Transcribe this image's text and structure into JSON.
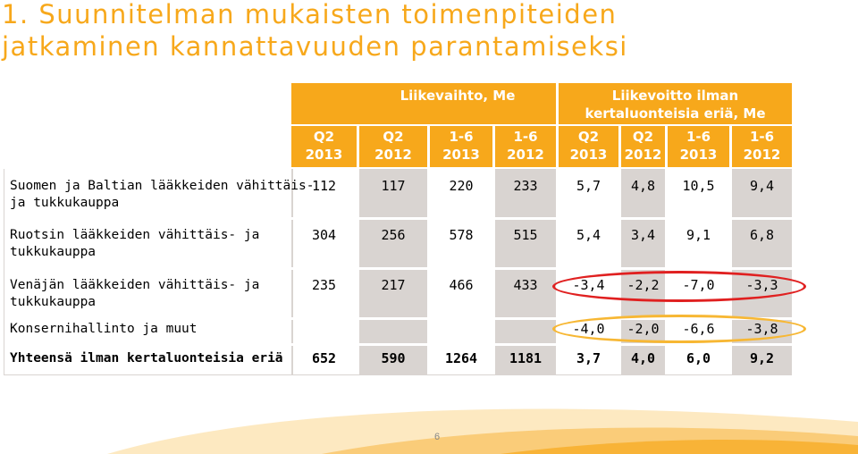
{
  "title": {
    "line1": "1. Suunnitelman mukaisten toimenpiteiden",
    "line2": "jatkaminen kannattavuuden parantamiseksi"
  },
  "table": {
    "group_headers": {
      "revenue": "Liikevaihto, Me",
      "profit_line1": "Liikevoitto ilman",
      "profit_line2": "kertaluonteisia eriä, Me"
    },
    "columns": [
      {
        "line1": "Q2",
        "line2": "2013"
      },
      {
        "line1": "Q2",
        "line2": "2012"
      },
      {
        "line1": "1-6",
        "line2": "2013"
      },
      {
        "line1": "1-6",
        "line2": "2012"
      },
      {
        "line1": "Q2",
        "line2": "2013"
      },
      {
        "line1": "Q2",
        "line2": "2012"
      },
      {
        "line1": "1-6",
        "line2": "2013"
      },
      {
        "line1": "1-6",
        "line2": "2012"
      }
    ],
    "rows": [
      {
        "label1": "Suomen ja Baltian lääkkeiden vähittäis-",
        "label2": "ja tukkukauppa",
        "values": [
          "112",
          "117",
          "220",
          "233",
          "5,7",
          "4,8",
          "10,5",
          "9,4"
        ]
      },
      {
        "label1": "Ruotsin lääkkeiden vähittäis- ja",
        "label2": "tukkukauppa",
        "values": [
          "304",
          "256",
          "578",
          "515",
          "5,4",
          "3,4",
          "9,1",
          "6,8"
        ]
      },
      {
        "label1": "Venäjän lääkkeiden vähittäis- ja",
        "label2": "tukkukauppa",
        "values": [
          "235",
          "217",
          "466",
          "433",
          "-3,4",
          "-2,2",
          "-7,0",
          "-3,3"
        ]
      },
      {
        "label1": "Konsernihallinto ja muut",
        "label2": "",
        "values": [
          "",
          "",
          "",
          "",
          "-4,0",
          "-2,0",
          "-6,6",
          "-3,8"
        ]
      },
      {
        "label1": "Yhteensä ilman kertaluonteisia eriä",
        "label2": "",
        "values": [
          "652",
          "590",
          "1264",
          "1181",
          "3,7",
          "4,0",
          "6,0",
          "9,2"
        ]
      }
    ]
  },
  "highlights": {
    "red_oval_color": "#e02020",
    "orange_oval_color": "#f7b733"
  },
  "colors": {
    "accent": "#f7a81b",
    "shade": "#d9d4d1"
  },
  "footer": {
    "page_number": "6"
  }
}
